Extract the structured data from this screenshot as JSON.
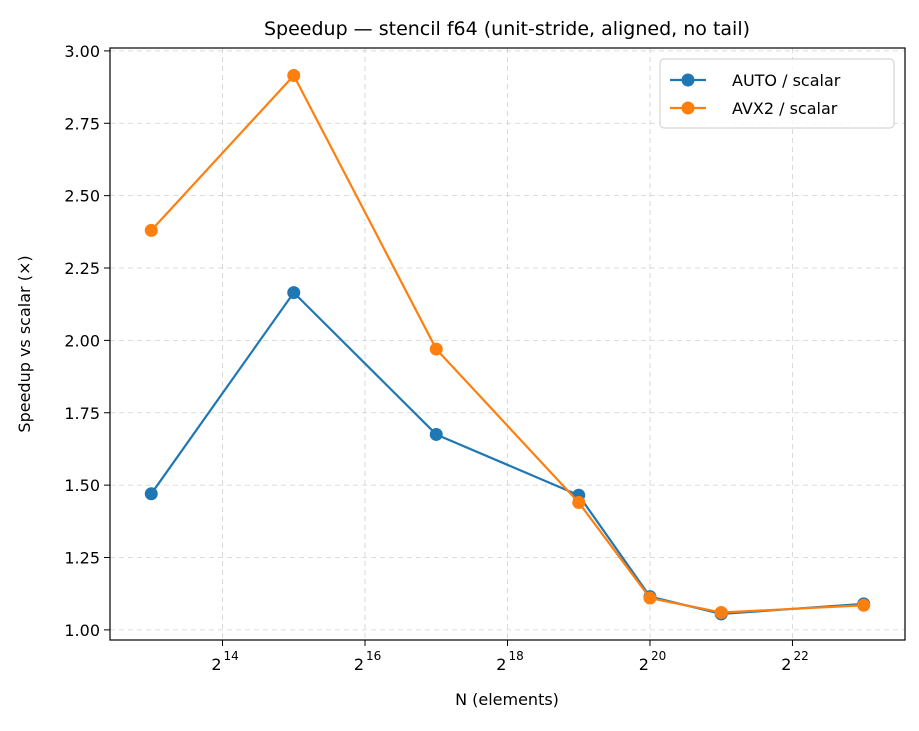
{
  "chart_data": {
    "type": "line",
    "title": "Speedup — stencil f64 (unit-stride, aligned, no tail)",
    "xlabel": "N (elements)",
    "ylabel": "Speedup vs scalar (×)",
    "xscale": "log2",
    "x": [
      8192,
      32768,
      131072,
      524288,
      1048576,
      2097152,
      8388608
    ],
    "xlim": [
      5483,
      12536000
    ],
    "ylim": [
      0.965,
      3.01
    ],
    "xticks": [
      16384,
      65536,
      262144,
      1048576,
      4194304
    ],
    "xtick_labels": [
      {
        "base": "2",
        "exp": "14"
      },
      {
        "base": "2",
        "exp": "16"
      },
      {
        "base": "2",
        "exp": "18"
      },
      {
        "base": "2",
        "exp": "20"
      },
      {
        "base": "2",
        "exp": "22"
      }
    ],
    "yticks": [
      1.0,
      1.25,
      1.5,
      1.75,
      2.0,
      2.25,
      2.5,
      2.75,
      3.0
    ],
    "ytick_labels": [
      "1.00",
      "1.25",
      "1.50",
      "1.75",
      "2.00",
      "2.25",
      "2.50",
      "2.75",
      "3.00"
    ],
    "grid": true,
    "legend_position": "top-right",
    "series": [
      {
        "name": "AUTO / scalar",
        "color": "#1f77b4",
        "values": [
          1.47,
          2.165,
          1.675,
          1.465,
          1.115,
          1.055,
          1.09
        ]
      },
      {
        "name": "AVX2 / scalar",
        "color": "#ff7f0e",
        "values": [
          2.38,
          2.915,
          1.97,
          1.44,
          1.11,
          1.06,
          1.085
        ]
      }
    ]
  }
}
